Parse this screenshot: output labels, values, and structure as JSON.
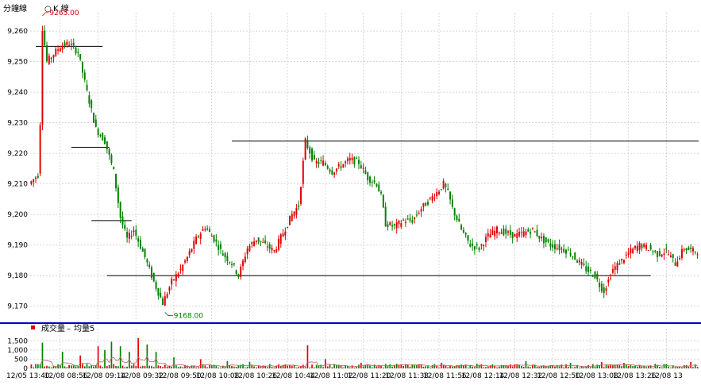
{
  "header": {
    "tab_minute": "分鐘線",
    "tab_kline": "K 線",
    "volume_legend_main": "成交量",
    "volume_legend_avg": "均量5"
  },
  "colors": {
    "up": "#e00000",
    "down": "#008000",
    "separator": "#0000cc",
    "grid": "#c8c8c8",
    "level_line": "#000000"
  },
  "chart_data": {
    "type": "candlestick",
    "price_axis": {
      "ticks": [
        "9,170",
        "9,180",
        "9,190",
        "9,200",
        "9,210",
        "9,220",
        "9,230",
        "9,240",
        "9,250",
        "9,260"
      ],
      "ylim": [
        9165,
        9266
      ]
    },
    "volume_axis": {
      "ticks": [
        "0",
        "500",
        "1,000",
        "1,500"
      ],
      "ylim": [
        0,
        1900
      ]
    },
    "x_tick_labels": [
      "12/05 13:40",
      "12/08 08:56",
      "12/08 09:14",
      "12/08 09:32",
      "12/08 09:50",
      "12/08 10:08",
      "12/08 10:26",
      "12/08 10:44",
      "12/08 11:02",
      "12/08 11:20",
      "12/08 11:38",
      "12/08 11:56",
      "12/08 12:14",
      "12/08 12:32",
      "12/08 12:50",
      "12/08 13:08",
      "12/08 13:26",
      "12/08 13"
    ],
    "high_marker": {
      "label": "9265.00",
      "value": 9265
    },
    "low_marker": {
      "label": "9168.00",
      "value": 9168
    },
    "level_lines": [
      {
        "value": 9255
      },
      {
        "value": 9222
      },
      {
        "value": 9198
      },
      {
        "value": 9180
      },
      {
        "value": 9224
      }
    ],
    "close_path": [
      [
        0,
        9210
      ],
      [
        4,
        9213
      ],
      [
        5,
        9230
      ],
      [
        6,
        9261
      ],
      [
        8,
        9250
      ],
      [
        14,
        9255
      ],
      [
        18,
        9256
      ],
      [
        22,
        9253
      ],
      [
        26,
        9240
      ],
      [
        30,
        9228
      ],
      [
        34,
        9224
      ],
      [
        38,
        9214
      ],
      [
        41,
        9199
      ],
      [
        44,
        9192
      ],
      [
        47,
        9195
      ],
      [
        52,
        9186
      ],
      [
        56,
        9178
      ],
      [
        60,
        9171
      ],
      [
        64,
        9178
      ],
      [
        68,
        9182
      ],
      [
        71,
        9186
      ],
      [
        75,
        9192
      ],
      [
        79,
        9196
      ],
      [
        83,
        9192
      ],
      [
        87,
        9187
      ],
      [
        91,
        9184
      ],
      [
        94,
        9180
      ],
      [
        98,
        9189
      ],
      [
        102,
        9192
      ],
      [
        106,
        9190
      ],
      [
        110,
        9188
      ],
      [
        114,
        9194
      ],
      [
        118,
        9200
      ],
      [
        121,
        9203
      ],
      [
        124,
        9224
      ],
      [
        128,
        9217
      ],
      [
        132,
        9217
      ],
      [
        136,
        9214
      ],
      [
        140,
        9216
      ],
      [
        144,
        9218
      ],
      [
        148,
        9217
      ],
      [
        152,
        9212
      ],
      [
        156,
        9210
      ],
      [
        158,
        9206
      ],
      [
        160,
        9197
      ],
      [
        164,
        9196
      ],
      [
        168,
        9198
      ],
      [
        172,
        9198
      ],
      [
        176,
        9202
      ],
      [
        180,
        9205
      ],
      [
        184,
        9208
      ],
      [
        186,
        9210
      ],
      [
        188,
        9207
      ],
      [
        190,
        9202
      ],
      [
        194,
        9195
      ],
      [
        198,
        9190
      ],
      [
        202,
        9189
      ],
      [
        206,
        9193
      ],
      [
        210,
        9195
      ],
      [
        214,
        9194
      ],
      [
        218,
        9193
      ],
      [
        222,
        9194
      ],
      [
        226,
        9195
      ],
      [
        230,
        9192
      ],
      [
        234,
        9190
      ],
      [
        238,
        9189
      ],
      [
        242,
        9188
      ],
      [
        246,
        9185
      ],
      [
        250,
        9182
      ],
      [
        254,
        9180
      ],
      [
        256,
        9177
      ],
      [
        258,
        9175
      ],
      [
        262,
        9182
      ],
      [
        266,
        9185
      ],
      [
        270,
        9188
      ],
      [
        274,
        9190
      ],
      [
        278,
        9189
      ],
      [
        282,
        9187
      ],
      [
        286,
        9188
      ],
      [
        290,
        9184
      ],
      [
        294,
        9189
      ],
      [
        298,
        9188
      ]
    ],
    "volume_spikes": [
      [
        5,
        1400
      ],
      [
        14,
        900
      ],
      [
        22,
        700
      ],
      [
        30,
        1200
      ],
      [
        33,
        1000
      ],
      [
        36,
        1450
      ],
      [
        40,
        1200
      ],
      [
        44,
        900
      ],
      [
        48,
        1650
      ],
      [
        52,
        1300
      ],
      [
        56,
        900
      ],
      [
        64,
        600
      ],
      [
        76,
        500
      ],
      [
        88,
        400
      ],
      [
        98,
        350
      ],
      [
        124,
        1250
      ],
      [
        132,
        500
      ],
      [
        148,
        300
      ],
      [
        164,
        250
      ],
      [
        184,
        300
      ],
      [
        200,
        250
      ],
      [
        222,
        400
      ],
      [
        242,
        300
      ],
      [
        256,
        350
      ],
      [
        266,
        300
      ],
      [
        280,
        250
      ],
      [
        296,
        350
      ]
    ]
  }
}
